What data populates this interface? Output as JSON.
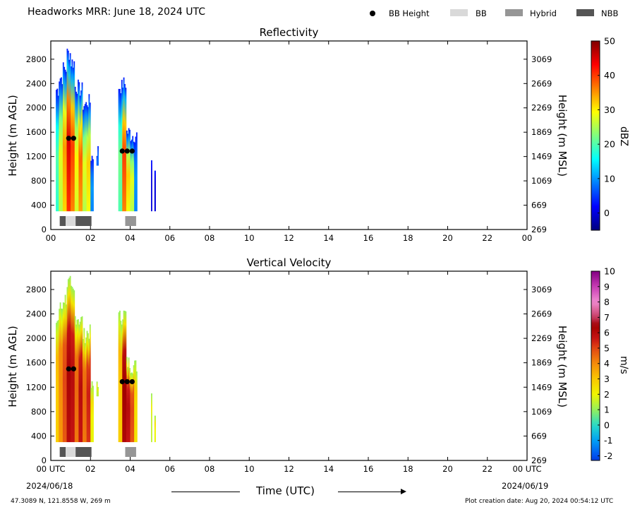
{
  "header": {
    "title": "Headworks MRR:  June 18, 2024 UTC",
    "legend": {
      "bb_height": "BB Height",
      "bb": "BB",
      "hybrid": "Hybrid",
      "nbb": "NBB"
    }
  },
  "footer": {
    "location": "47.3089 N, 121.8558 W, 269 m",
    "creation": "Plot creation date: Aug 20, 2024 00:54:12 UTC",
    "time_label": "Time (UTC)",
    "start_date": "2024/06/18",
    "end_date": "2024/06/19"
  },
  "colors": {
    "bb": "#d9d9d9",
    "hybrid": "#969696",
    "nbb": "#555555",
    "bb_marker": "#000000"
  },
  "chart_data": [
    {
      "type": "heatmap",
      "title": "Reflectivity",
      "ylabel": "Height (m AGL)",
      "ylabel_right": "Height (m MSL)",
      "colorbar_label": "dBZ",
      "colormap": "jet",
      "xlim": [
        0,
        24
      ],
      "ylim": [
        0,
        3100
      ],
      "x_ticks": [
        "00",
        "02",
        "04",
        "06",
        "08",
        "10",
        "12",
        "14",
        "16",
        "18",
        "20",
        "22",
        "00"
      ],
      "y_ticks": [
        0,
        400,
        800,
        1200,
        1600,
        2000,
        2400,
        2800
      ],
      "y_ticks_right": [
        269,
        669,
        1069,
        1469,
        1869,
        2269,
        2669,
        3069
      ],
      "colorbar_range": [
        -5,
        50
      ],
      "colorbar_ticks": [
        0,
        10,
        20,
        30,
        40,
        50
      ],
      "echo_columns": [
        {
          "start": 0.25,
          "end": 0.4,
          "top": 2300,
          "peak": 20
        },
        {
          "start": 0.4,
          "end": 0.6,
          "top": 2500,
          "peak": 28
        },
        {
          "start": 0.6,
          "end": 0.8,
          "top": 2650,
          "peak": 35
        },
        {
          "start": 0.8,
          "end": 1.0,
          "top": 2900,
          "peak": 45
        },
        {
          "start": 1.0,
          "end": 1.2,
          "top": 2750,
          "peak": 40
        },
        {
          "start": 1.2,
          "end": 1.4,
          "top": 2350,
          "peak": 30
        },
        {
          "start": 1.4,
          "end": 1.6,
          "top": 2300,
          "peak": 38
        },
        {
          "start": 1.6,
          "end": 1.8,
          "top": 2050,
          "peak": 28
        },
        {
          "start": 1.8,
          "end": 2.0,
          "top": 2100,
          "peak": 32
        },
        {
          "start": 2.0,
          "end": 2.15,
          "top": 1200,
          "peak": 10
        },
        {
          "start": 2.3,
          "end": 2.4,
          "top": 1300,
          "base": 1050,
          "peak": 8
        },
        {
          "start": 3.4,
          "end": 3.6,
          "top": 2350,
          "peak": 22
        },
        {
          "start": 3.6,
          "end": 3.8,
          "top": 2400,
          "peak": 40
        },
        {
          "start": 3.8,
          "end": 4.0,
          "top": 1600,
          "peak": 32
        },
        {
          "start": 4.0,
          "end": 4.2,
          "top": 1550,
          "peak": 28
        },
        {
          "start": 4.2,
          "end": 4.35,
          "top": 1550,
          "peak": 10
        },
        {
          "start": 5.05,
          "end": 5.1,
          "top": 1100,
          "peak": 0
        },
        {
          "start": 5.22,
          "end": 5.28,
          "top": 850,
          "peak": 0
        }
      ],
      "bb_height_points": [
        {
          "time": 0.9,
          "height": 1500
        },
        {
          "time": 1.15,
          "height": 1500
        },
        {
          "time": 3.6,
          "height": 1290
        },
        {
          "time": 3.85,
          "height": 1290
        },
        {
          "time": 4.1,
          "height": 1290
        }
      ],
      "bb_type_periods": [
        {
          "start": 0.45,
          "end": 0.75,
          "type": "nbb"
        },
        {
          "start": 0.75,
          "end": 1.25,
          "type": "bb"
        },
        {
          "start": 1.25,
          "end": 2.05,
          "type": "nbb"
        },
        {
          "start": 3.75,
          "end": 4.3,
          "type": "hybrid"
        }
      ]
    },
    {
      "type": "heatmap",
      "title": "Vertical Velocity",
      "ylabel": "Height (m AGL)",
      "ylabel_right": "Height (m MSL)",
      "colorbar_label": "m/s",
      "colormap": "velocity",
      "xlim": [
        0,
        24
      ],
      "ylim": [
        0,
        3100
      ],
      "x_ticks": [
        "00 UTC",
        "02",
        "04",
        "06",
        "08",
        "10",
        "12",
        "14",
        "16",
        "18",
        "20",
        "22",
        "00 UTC"
      ],
      "y_ticks": [
        0,
        400,
        800,
        1200,
        1600,
        2000,
        2400,
        2800
      ],
      "y_ticks_right": [
        269,
        669,
        1069,
        1469,
        1869,
        2269,
        2669,
        3069
      ],
      "colorbar_range": [
        -2.3,
        10
      ],
      "colorbar_ticks": [
        -2,
        -1,
        0,
        1,
        2,
        3,
        4,
        5,
        6,
        7,
        8,
        9,
        10
      ],
      "echo_columns": [
        {
          "start": 0.25,
          "end": 0.4,
          "top": 2300,
          "peak": 3
        },
        {
          "start": 0.4,
          "end": 0.6,
          "top": 2500,
          "peak": 4
        },
        {
          "start": 0.6,
          "end": 0.8,
          "top": 2650,
          "peak": 5
        },
        {
          "start": 0.8,
          "end": 1.0,
          "top": 2900,
          "peak": 6.3
        },
        {
          "start": 1.0,
          "end": 1.2,
          "top": 2750,
          "peak": 6
        },
        {
          "start": 1.2,
          "end": 1.4,
          "top": 2350,
          "peak": 4.5
        },
        {
          "start": 1.4,
          "end": 1.6,
          "top": 2300,
          "peak": 6
        },
        {
          "start": 1.6,
          "end": 1.8,
          "top": 2050,
          "peak": 4.5
        },
        {
          "start": 1.8,
          "end": 2.0,
          "top": 2100,
          "peak": 5.5
        },
        {
          "start": 2.0,
          "end": 2.15,
          "top": 1200,
          "peak": 2
        },
        {
          "start": 2.3,
          "end": 2.4,
          "top": 1300,
          "base": 1050,
          "peak": 1.5
        },
        {
          "start": 3.4,
          "end": 3.6,
          "top": 2350,
          "peak": 3
        },
        {
          "start": 3.6,
          "end": 3.8,
          "top": 2400,
          "peak": 6.5
        },
        {
          "start": 3.8,
          "end": 4.0,
          "top": 1600,
          "peak": 6
        },
        {
          "start": 4.0,
          "end": 4.2,
          "top": 1550,
          "peak": 5
        },
        {
          "start": 4.2,
          "end": 4.35,
          "top": 1550,
          "peak": 2.5
        },
        {
          "start": 5.05,
          "end": 5.1,
          "top": 1100,
          "peak": 1.5
        },
        {
          "start": 5.22,
          "end": 5.28,
          "top": 850,
          "peak": 2
        }
      ],
      "bb_height_points": [
        {
          "time": 0.9,
          "height": 1500
        },
        {
          "time": 1.15,
          "height": 1500
        },
        {
          "time": 3.6,
          "height": 1290
        },
        {
          "time": 3.85,
          "height": 1290
        },
        {
          "time": 4.1,
          "height": 1290
        }
      ],
      "bb_type_periods": [
        {
          "start": 0.45,
          "end": 0.75,
          "type": "nbb"
        },
        {
          "start": 0.75,
          "end": 1.25,
          "type": "bb"
        },
        {
          "start": 1.25,
          "end": 2.05,
          "type": "nbb"
        },
        {
          "start": 3.75,
          "end": 4.3,
          "type": "hybrid"
        }
      ]
    }
  ]
}
